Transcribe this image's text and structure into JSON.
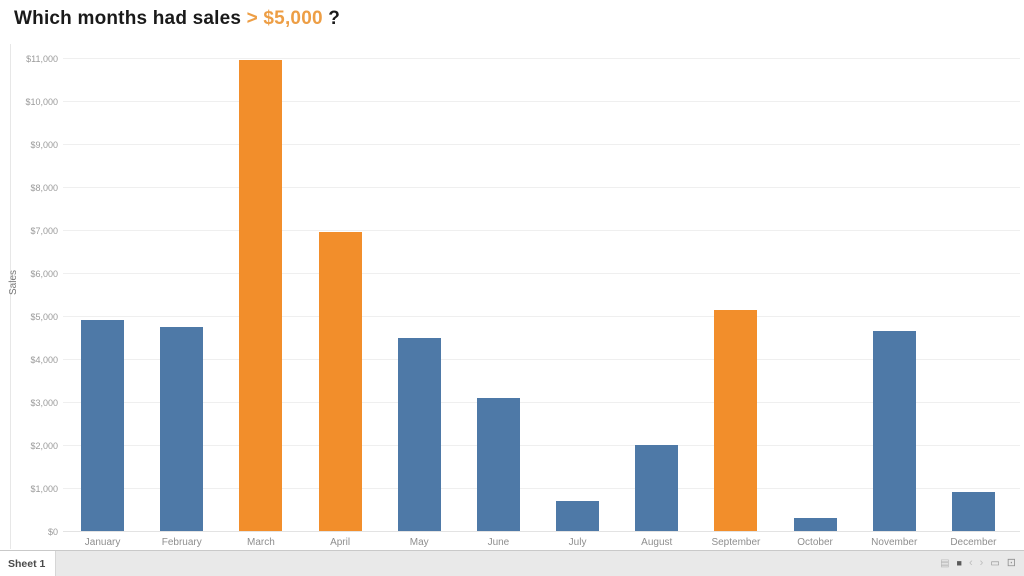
{
  "title": {
    "prefix": "Which months had sales ",
    "highlight": "> $5,000",
    "suffix": " ?"
  },
  "colors": {
    "bar_default": "#4E79A7",
    "bar_highlight": "#F28E2B",
    "title_highlight": "#ED9E45",
    "gridline": "#EFEFEF"
  },
  "chart_data": {
    "type": "bar",
    "title": "Which months had sales > $5,000 ?",
    "categories": [
      "January",
      "February",
      "March",
      "April",
      "May",
      "June",
      "July",
      "August",
      "September",
      "October",
      "November",
      "December"
    ],
    "values": [
      4900,
      4750,
      10950,
      6950,
      4500,
      3100,
      700,
      2000,
      5150,
      300,
      4650,
      900
    ],
    "highlight_threshold": 5000,
    "xlabel": "",
    "ylabel": "Sales",
    "ylim": [
      0,
      11000
    ],
    "ytick_step": 1000,
    "ytick_labels": [
      "$0",
      "$1,000",
      "$2,000",
      "$3,000",
      "$4,000",
      "$5,000",
      "$6,000",
      "$7,000",
      "$8,000",
      "$9,000",
      "$10,000",
      "$11,000"
    ],
    "grid": true,
    "legend": "none"
  },
  "status_bar": {
    "sheet_tab_label": "Sheet 1",
    "icons": [
      {
        "name": "sheet-sorter-icon",
        "glyph": "▤"
      },
      {
        "name": "filmstrip-icon",
        "glyph": "■"
      },
      {
        "name": "previous-sheet-icon",
        "glyph": "‹"
      },
      {
        "name": "next-sheet-icon",
        "glyph": "›"
      },
      {
        "name": "normal-view-icon",
        "glyph": "▭"
      },
      {
        "name": "presentation-mode-icon",
        "glyph": "⊡"
      }
    ]
  }
}
